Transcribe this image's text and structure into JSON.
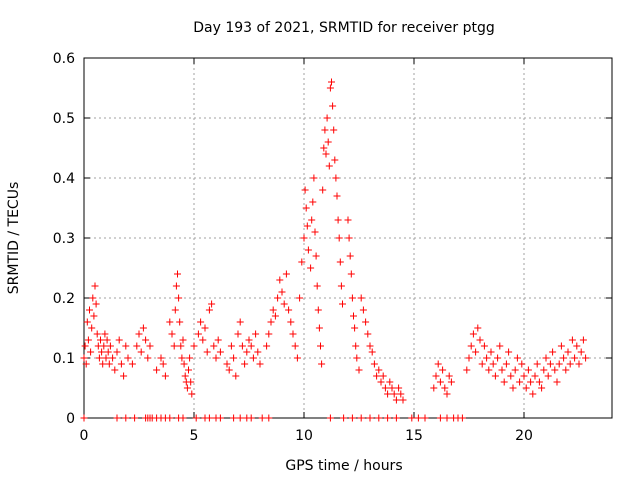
{
  "chart_data": {
    "type": "scatter",
    "title": "Day 193 of 2021, SRMTID for receiver ptgg",
    "xlabel": "GPS time / hours",
    "ylabel": "SRMTID / TECUs",
    "xlim": [
      0,
      24
    ],
    "ylim": [
      0,
      0.6
    ],
    "xticks": [
      0,
      5,
      10,
      15,
      20
    ],
    "yticks": [
      0,
      0.1,
      0.2,
      0.3,
      0.4,
      0.5,
      0.6
    ],
    "xtick_labels": [
      "0",
      "5",
      "10",
      "15",
      "20"
    ],
    "ytick_labels": [
      "0",
      "0.1",
      "0.2",
      "0.3",
      "0.4",
      "0.5",
      "0.6"
    ],
    "grid": true,
    "marker": "+",
    "color": "#ff0000",
    "series": [
      {
        "name": "SRMTID",
        "points": [
          [
            0.0,
            0.1
          ],
          [
            0.05,
            0.12
          ],
          [
            0.1,
            0.09
          ],
          [
            0.15,
            0.16
          ],
          [
            0.2,
            0.13
          ],
          [
            0.25,
            0.18
          ],
          [
            0.3,
            0.11
          ],
          [
            0.35,
            0.15
          ],
          [
            0.4,
            0.2
          ],
          [
            0.45,
            0.17
          ],
          [
            0.5,
            0.22
          ],
          [
            0.55,
            0.19
          ],
          [
            0.6,
            0.14
          ],
          [
            0.65,
            0.12
          ],
          [
            0.7,
            0.1
          ],
          [
            0.75,
            0.13
          ],
          [
            0.8,
            0.11
          ],
          [
            0.85,
            0.09
          ],
          [
            0.9,
            0.12
          ],
          [
            0.95,
            0.14
          ],
          [
            1.0,
            0.1
          ],
          [
            1.05,
            0.13
          ],
          [
            1.1,
            0.11
          ],
          [
            1.15,
            0.09
          ],
          [
            1.2,
            0.12
          ],
          [
            1.3,
            0.1
          ],
          [
            1.4,
            0.08
          ],
          [
            1.5,
            0.11
          ],
          [
            1.6,
            0.13
          ],
          [
            1.7,
            0.09
          ],
          [
            1.8,
            0.07
          ],
          [
            1.9,
            0.12
          ],
          [
            2.0,
            0.1
          ],
          [
            2.2,
            0.09
          ],
          [
            2.4,
            0.12
          ],
          [
            2.5,
            0.14
          ],
          [
            2.6,
            0.11
          ],
          [
            2.7,
            0.15
          ],
          [
            2.8,
            0.13
          ],
          [
            2.9,
            0.1
          ],
          [
            3.0,
            0.12
          ],
          [
            3.3,
            0.08
          ],
          [
            3.5,
            0.1
          ],
          [
            3.6,
            0.09
          ],
          [
            3.7,
            0.07
          ],
          [
            3.9,
            0.16
          ],
          [
            4.0,
            0.14
          ],
          [
            4.1,
            0.12
          ],
          [
            4.15,
            0.18
          ],
          [
            4.2,
            0.22
          ],
          [
            4.25,
            0.24
          ],
          [
            4.3,
            0.2
          ],
          [
            4.35,
            0.16
          ],
          [
            4.4,
            0.12
          ],
          [
            4.45,
            0.1
          ],
          [
            4.5,
            0.13
          ],
          [
            4.55,
            0.09
          ],
          [
            4.6,
            0.07
          ],
          [
            4.65,
            0.06
          ],
          [
            4.7,
            0.05
          ],
          [
            4.75,
            0.08
          ],
          [
            4.8,
            0.1
          ],
          [
            4.85,
            0.06
          ],
          [
            4.9,
            0.04
          ],
          [
            5.0,
            0.12
          ],
          [
            5.2,
            0.14
          ],
          [
            5.3,
            0.16
          ],
          [
            5.4,
            0.13
          ],
          [
            5.5,
            0.15
          ],
          [
            5.6,
            0.11
          ],
          [
            5.7,
            0.18
          ],
          [
            5.8,
            0.19
          ],
          [
            5.9,
            0.12
          ],
          [
            6.0,
            0.1
          ],
          [
            6.1,
            0.13
          ],
          [
            6.2,
            0.11
          ],
          [
            6.5,
            0.09
          ],
          [
            6.6,
            0.08
          ],
          [
            6.7,
            0.12
          ],
          [
            6.8,
            0.1
          ],
          [
            6.9,
            0.07
          ],
          [
            7.0,
            0.14
          ],
          [
            7.1,
            0.16
          ],
          [
            7.2,
            0.12
          ],
          [
            7.3,
            0.09
          ],
          [
            7.4,
            0.11
          ],
          [
            7.5,
            0.13
          ],
          [
            7.6,
            0.12
          ],
          [
            7.7,
            0.1
          ],
          [
            7.8,
            0.14
          ],
          [
            7.9,
            0.11
          ],
          [
            8.0,
            0.09
          ],
          [
            8.3,
            0.12
          ],
          [
            8.4,
            0.14
          ],
          [
            8.5,
            0.16
          ],
          [
            8.6,
            0.18
          ],
          [
            8.7,
            0.17
          ],
          [
            8.8,
            0.2
          ],
          [
            8.9,
            0.23
          ],
          [
            9.0,
            0.21
          ],
          [
            9.1,
            0.19
          ],
          [
            9.2,
            0.24
          ],
          [
            9.3,
            0.18
          ],
          [
            9.4,
            0.16
          ],
          [
            9.5,
            0.14
          ],
          [
            9.6,
            0.12
          ],
          [
            9.7,
            0.1
          ],
          [
            9.8,
            0.2
          ],
          [
            9.9,
            0.26
          ],
          [
            10.0,
            0.3
          ],
          [
            10.05,
            0.38
          ],
          [
            10.1,
            0.35
          ],
          [
            10.15,
            0.32
          ],
          [
            10.2,
            0.28
          ],
          [
            10.3,
            0.25
          ],
          [
            10.35,
            0.33
          ],
          [
            10.4,
            0.36
          ],
          [
            10.45,
            0.4
          ],
          [
            10.5,
            0.31
          ],
          [
            10.55,
            0.27
          ],
          [
            10.6,
            0.22
          ],
          [
            10.65,
            0.18
          ],
          [
            10.7,
            0.15
          ],
          [
            10.75,
            0.12
          ],
          [
            10.8,
            0.09
          ],
          [
            10.85,
            0.38
          ],
          [
            10.9,
            0.45
          ],
          [
            10.95,
            0.48
          ],
          [
            11.0,
            0.44
          ],
          [
            11.05,
            0.5
          ],
          [
            11.1,
            0.46
          ],
          [
            11.15,
            0.42
          ],
          [
            11.2,
            0.55
          ],
          [
            11.25,
            0.56
          ],
          [
            11.3,
            0.52
          ],
          [
            11.35,
            0.48
          ],
          [
            11.4,
            0.43
          ],
          [
            11.45,
            0.4
          ],
          [
            11.5,
            0.37
          ],
          [
            11.55,
            0.33
          ],
          [
            11.6,
            0.3
          ],
          [
            11.65,
            0.26
          ],
          [
            11.7,
            0.22
          ],
          [
            11.75,
            0.19
          ],
          [
            12.0,
            0.33
          ],
          [
            12.05,
            0.3
          ],
          [
            12.1,
            0.27
          ],
          [
            12.15,
            0.24
          ],
          [
            12.2,
            0.2
          ],
          [
            12.25,
            0.17
          ],
          [
            12.3,
            0.15
          ],
          [
            12.35,
            0.12
          ],
          [
            12.4,
            0.1
          ],
          [
            12.5,
            0.08
          ],
          [
            12.6,
            0.2
          ],
          [
            12.7,
            0.18
          ],
          [
            12.8,
            0.16
          ],
          [
            12.9,
            0.14
          ],
          [
            13.0,
            0.12
          ],
          [
            13.1,
            0.11
          ],
          [
            13.2,
            0.09
          ],
          [
            13.3,
            0.07
          ],
          [
            13.4,
            0.08
          ],
          [
            13.5,
            0.06
          ],
          [
            13.6,
            0.07
          ],
          [
            13.7,
            0.05
          ],
          [
            13.8,
            0.04
          ],
          [
            13.9,
            0.06
          ],
          [
            14.0,
            0.05
          ],
          [
            14.1,
            0.04
          ],
          [
            14.2,
            0.03
          ],
          [
            14.3,
            0.05
          ],
          [
            14.4,
            0.04
          ],
          [
            14.5,
            0.03
          ],
          [
            15.9,
            0.05
          ],
          [
            16.0,
            0.07
          ],
          [
            16.1,
            0.09
          ],
          [
            16.2,
            0.06
          ],
          [
            16.3,
            0.08
          ],
          [
            16.4,
            0.05
          ],
          [
            16.5,
            0.04
          ],
          [
            16.6,
            0.07
          ],
          [
            16.7,
            0.06
          ],
          [
            17.4,
            0.08
          ],
          [
            17.5,
            0.1
          ],
          [
            17.6,
            0.12
          ],
          [
            17.7,
            0.14
          ],
          [
            17.8,
            0.11
          ],
          [
            17.9,
            0.15
          ],
          [
            18.0,
            0.13
          ],
          [
            18.1,
            0.09
          ],
          [
            18.2,
            0.12
          ],
          [
            18.3,
            0.1
          ],
          [
            18.4,
            0.08
          ],
          [
            18.5,
            0.11
          ],
          [
            18.6,
            0.09
          ],
          [
            18.7,
            0.07
          ],
          [
            18.8,
            0.1
          ],
          [
            18.9,
            0.12
          ],
          [
            19.0,
            0.08
          ],
          [
            19.1,
            0.06
          ],
          [
            19.2,
            0.09
          ],
          [
            19.3,
            0.11
          ],
          [
            19.4,
            0.07
          ],
          [
            19.5,
            0.05
          ],
          [
            19.6,
            0.08
          ],
          [
            19.7,
            0.1
          ],
          [
            19.8,
            0.06
          ],
          [
            19.9,
            0.09
          ],
          [
            20.0,
            0.07
          ],
          [
            20.1,
            0.05
          ],
          [
            20.2,
            0.08
          ],
          [
            20.3,
            0.06
          ],
          [
            20.4,
            0.04
          ],
          [
            20.5,
            0.07
          ],
          [
            20.6,
            0.09
          ],
          [
            20.7,
            0.06
          ],
          [
            20.8,
            0.05
          ],
          [
            20.9,
            0.08
          ],
          [
            21.0,
            0.1
          ],
          [
            21.1,
            0.07
          ],
          [
            21.2,
            0.09
          ],
          [
            21.3,
            0.11
          ],
          [
            21.4,
            0.08
          ],
          [
            21.5,
            0.06
          ],
          [
            21.6,
            0.09
          ],
          [
            21.7,
            0.12
          ],
          [
            21.8,
            0.1
          ],
          [
            21.9,
            0.08
          ],
          [
            22.0,
            0.11
          ],
          [
            22.1,
            0.09
          ],
          [
            22.2,
            0.13
          ],
          [
            22.3,
            0.1
          ],
          [
            22.4,
            0.12
          ],
          [
            22.5,
            0.09
          ],
          [
            22.6,
            0.11
          ],
          [
            22.7,
            0.13
          ],
          [
            22.8,
            0.1
          ]
        ],
        "zero_points": [
          0.0,
          1.5,
          1.9,
          2.3,
          2.8,
          2.9,
          3.0,
          3.1,
          3.3,
          3.5,
          3.7,
          3.9,
          4.3,
          4.5,
          5.1,
          5.5,
          5.7,
          6.0,
          6.2,
          6.8,
          7.1,
          7.4,
          7.6,
          8.1,
          8.4,
          11.2,
          11.8,
          12.2,
          12.6,
          13.0,
          13.4,
          13.8,
          14.2,
          14.9,
          15.2,
          15.5,
          16.2,
          16.5,
          16.8,
          17.0,
          17.2
        ]
      }
    ]
  }
}
